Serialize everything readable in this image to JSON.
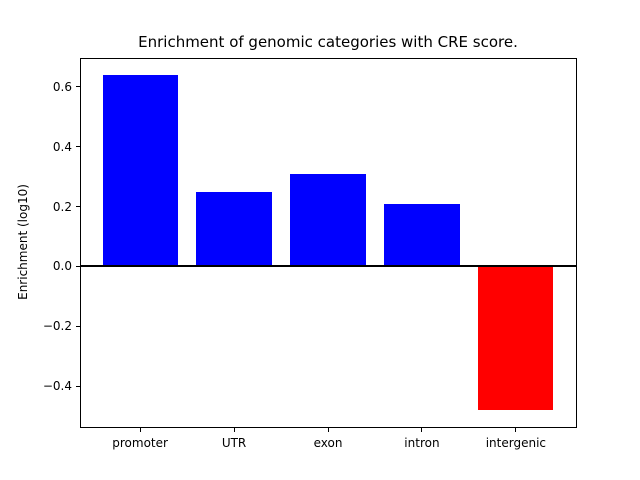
{
  "figure": {
    "background_color": "#ffffff",
    "text_color": "#000000"
  },
  "chart_data": {
    "type": "bar",
    "title": "Enrichment of genomic categories with CRE score.",
    "xlabel": "",
    "ylabel": "Enrichment (log10)",
    "categories": [
      "promoter",
      "UTR",
      "exon",
      "intron",
      "intergenic"
    ],
    "values": [
      0.64,
      0.25,
      0.31,
      0.21,
      -0.48
    ],
    "bar_colors": [
      "#0000ff",
      "#0000ff",
      "#0000ff",
      "#0000ff",
      "#ff0000"
    ],
    "positive_color": "#0000ff",
    "negative_color": "#ff0000",
    "yticks": [
      -0.4,
      -0.2,
      0.0,
      0.2,
      0.4,
      0.6
    ],
    "ylim": [
      -0.536,
      0.696
    ],
    "xlim": [
      -0.64,
      4.64
    ],
    "bar_width": 0.8,
    "zero_line": true,
    "zero_line_color": "#000000",
    "grid": false,
    "legend_position": "none"
  }
}
